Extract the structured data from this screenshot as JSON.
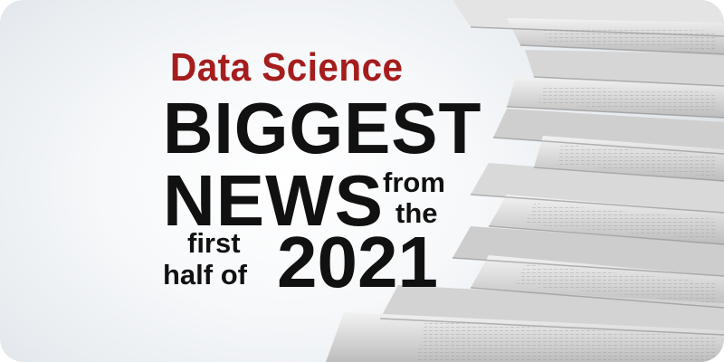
{
  "banner": {
    "subtitle": "Data Science",
    "headline_line1": "BIGGEST",
    "headline_line2": "NEWS",
    "small_from": "from",
    "small_the": "the",
    "small_first": "first",
    "small_half_of": "half of",
    "year": "2021"
  },
  "colors": {
    "subtitle": "#a51d1d",
    "headline": "#111111",
    "background": "#eef1f4"
  },
  "image": {
    "subject": "stack of folded newspapers"
  }
}
